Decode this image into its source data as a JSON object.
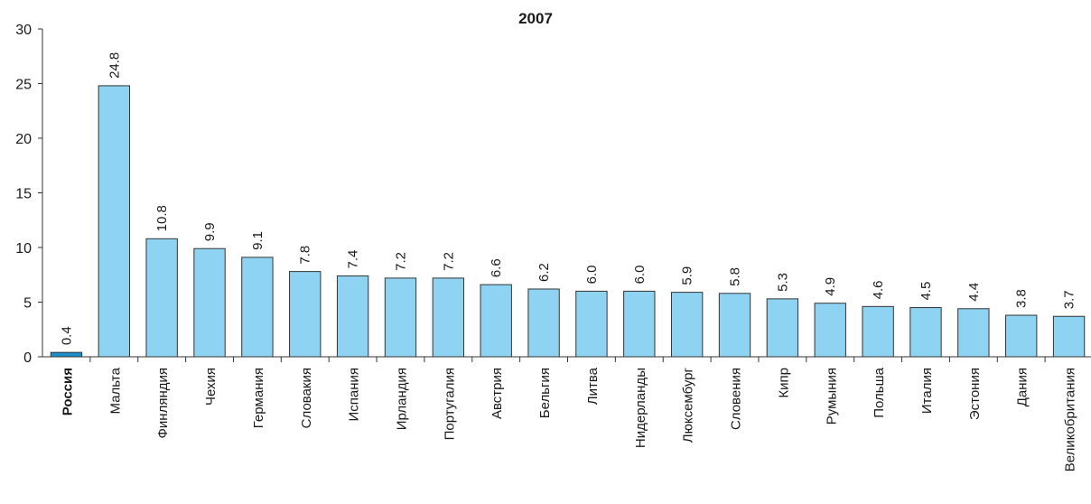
{
  "chart_data": {
    "type": "bar",
    "title": "2007",
    "xlabel": "",
    "ylabel": "",
    "ylim": [
      0,
      30
    ],
    "yticks": [
      0,
      5,
      10,
      15,
      20,
      25,
      30
    ],
    "grid": false,
    "categories": [
      "Россия",
      "Мальта",
      "Финляндия",
      "Чехия",
      "Германия",
      "Словакия",
      "Испания",
      "Ирландия",
      "Португалия",
      "Австрия",
      "Бельгия",
      "Литва",
      "Нидерланды",
      "Люксембург",
      "Словения",
      "Кипр",
      "Румыния",
      "Польша",
      "Италия",
      "Эстония",
      "Дания",
      "Великобритания"
    ],
    "values": [
      0.4,
      24.8,
      10.8,
      9.9,
      9.1,
      7.8,
      7.4,
      7.2,
      7.2,
      6.6,
      6.2,
      6.0,
      6.0,
      5.9,
      5.8,
      5.3,
      4.9,
      4.6,
      4.5,
      4.4,
      3.8,
      3.7
    ],
    "data_labels": [
      "0.4",
      "24.8",
      "10.8",
      "9.9",
      "9.1",
      "7.8",
      "7.4",
      "7.2",
      "7.2",
      "6.6",
      "6.2",
      "6.0",
      "6.0",
      "5.9",
      "5.8",
      "5.3",
      "4.9",
      "4.6",
      "4.5",
      "4.4",
      "3.8",
      "3.7"
    ],
    "highlight_category": "Россия",
    "colors": {
      "bar": "#8fd3f2",
      "highlight_bar": "#1b8fc9",
      "bar_stroke": "#333333",
      "axis": "#333333"
    }
  }
}
